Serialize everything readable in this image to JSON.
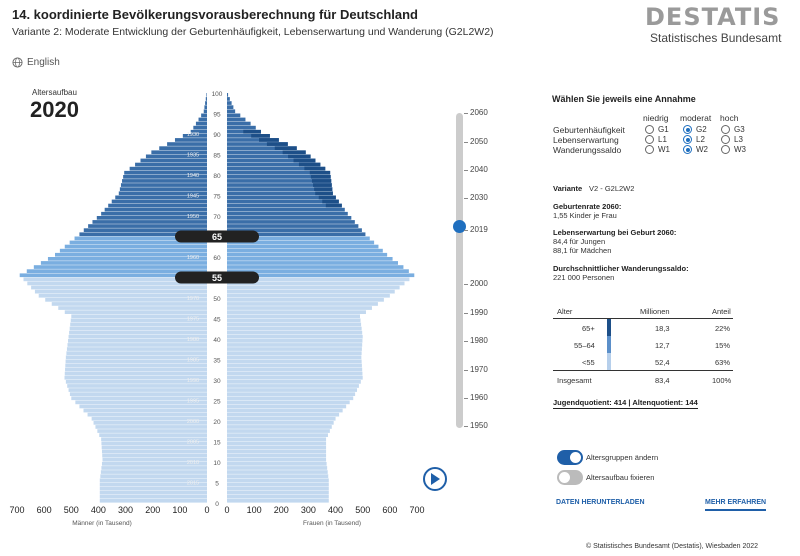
{
  "header": {
    "title": "14. koordinierte Bevölkerungsvorausberechnung für Deutschland",
    "subtitle": "Variante 2: Moderate Entwicklung der Geburtenhäufigkeit, Lebenserwartung und Wanderung (G2L2W2)",
    "logo_word": "DESTATIS",
    "logo_sub": "Statistisches Bundesamt",
    "language_link": "English"
  },
  "pyramid": {
    "label": "Altersaufbau",
    "year": "2020",
    "age_marker_upper": "65",
    "age_marker_lower": "55",
    "age_ticks": [
      "100",
      "95",
      "90",
      "85",
      "80",
      "75",
      "70",
      "65",
      "60",
      "55",
      "50",
      "45",
      "40",
      "35",
      "30",
      "25",
      "20",
      "15",
      "10",
      "5",
      "0"
    ],
    "x_ticks": [
      "700",
      "600",
      "500",
      "400",
      "300",
      "200",
      "100",
      "0"
    ],
    "xlabel_men": "Männer (in Tausend)",
    "xlabel_women": "Frauen (in Tausend)",
    "birth_year_labels": [
      "1930",
      "1935",
      "1940",
      "1945",
      "1950",
      "1960",
      "1965",
      "1970",
      "1975",
      "1980",
      "1985",
      "1990",
      "1995",
      "2000",
      "2005",
      "2010",
      "2015"
    ],
    "colors": {
      "old": "#3a6ea8",
      "old_excess": "#1d4f88",
      "mid": "#7aaee0",
      "young": "#c2d8ef"
    }
  },
  "chart_data": {
    "type": "bar",
    "title": "Altersaufbau 2020",
    "xlabel_left": "Männer (in Tausend)",
    "xlabel_right": "Frauen (in Tausend)",
    "xlim": [
      0,
      700
    ],
    "ages": [
      0,
      5,
      10,
      15,
      20,
      25,
      30,
      35,
      40,
      45,
      50,
      55,
      60,
      65,
      70,
      75,
      80,
      85,
      90,
      95,
      99
    ],
    "series": [
      {
        "name": "Männer",
        "values": [
          395,
          395,
          385,
          390,
          425,
          500,
          525,
          520,
          510,
          500,
          620,
          690,
          560,
          470,
          390,
          325,
          305,
          205,
          60,
          12,
          2
        ]
      },
      {
        "name": "Frauen",
        "values": [
          375,
          375,
          365,
          365,
          400,
          465,
          500,
          495,
          500,
          490,
          600,
          690,
          590,
          510,
          445,
          390,
          380,
          290,
          125,
          30,
          4
        ]
      }
    ]
  },
  "timeline": {
    "years": [
      "2060",
      "2050",
      "2040",
      "2030",
      "2019",
      "2000",
      "1990",
      "1980",
      "1970",
      "1960",
      "1950"
    ],
    "current": "2019"
  },
  "assumptions": {
    "heading": "Wählen Sie jeweils eine Annahme",
    "columns": [
      "niedrig",
      "moderat",
      "hoch"
    ],
    "rows": [
      {
        "label": "Geburtenhäufigkeit",
        "options": [
          "G1",
          "G2",
          "G3"
        ],
        "selected": 1
      },
      {
        "label": "Lebenserwartung",
        "options": [
          "L1",
          "L2",
          "L3"
        ],
        "selected": 1
      },
      {
        "label": "Wanderungssaldo",
        "options": [
          "W1",
          "W2",
          "W3"
        ],
        "selected": 1
      }
    ]
  },
  "info": {
    "variant_label": "Variante",
    "variant_value": "V2 - G2L2W2",
    "birth_rate_head": "Geburtenrate 2060:",
    "birth_rate_value": "1,55 Kinder je Frau",
    "life_exp_head": "Lebenserwartung bei Geburt 2060:",
    "life_exp_boys": "84,4 für Jungen",
    "life_exp_girls": "88,1 für Mädchen",
    "migration_head": "Durchschnittlicher Wanderungssaldo:",
    "migration_value": "221 000 Personen"
  },
  "table": {
    "headers": [
      "Alter",
      "Millionen",
      "Anteil"
    ],
    "rows": [
      {
        "age": "65+",
        "millions": "18,3",
        "share": "22%",
        "color": "#1d4f88"
      },
      {
        "age": "55–64",
        "millions": "12,7",
        "share": "15%",
        "color": "#5b8fc9"
      },
      {
        "age": "<55",
        "millions": "52,4",
        "share": "63%",
        "color": "#b6cfeb"
      }
    ],
    "total": {
      "age": "Insgesamt",
      "millions": "83,4",
      "share": "100%"
    },
    "ratios": "Jugendquotient: 414 | Altenquotient: 144"
  },
  "toggles": [
    {
      "label": "Altersgruppen ändern",
      "on": true
    },
    {
      "label": "Altersaufbau fixieren",
      "on": false
    }
  ],
  "links": {
    "download": "DATEN HERUNTERLADEN",
    "more": "MEHR ERFAHREN"
  },
  "footer": {
    "copyright": "© Statistisches Bundesamt (Destatis), Wiesbaden 2022"
  }
}
